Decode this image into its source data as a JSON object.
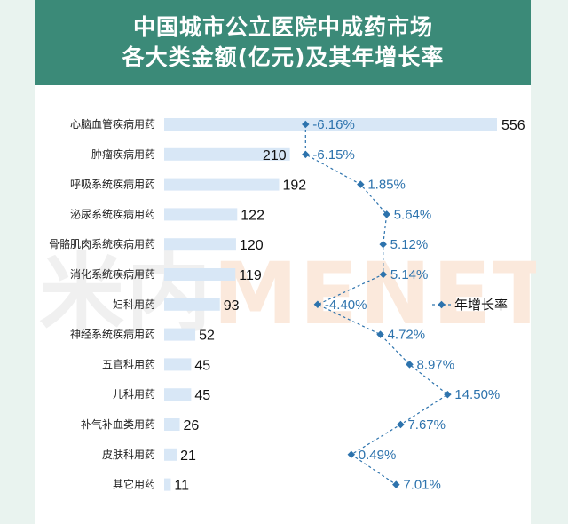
{
  "header": {
    "title_line1": "中国城市公立医院中成药市场",
    "title_line2": "各大类金额(亿元)及其年增长率"
  },
  "watermark": {
    "left": "米内",
    "right": "MENET"
  },
  "colors": {
    "header_bg": "#3b8a78",
    "bar": "#d8e7f6",
    "rate_line": "#2d73ad",
    "rate_text": "#2d73ad"
  },
  "chart_data": {
    "type": "bar",
    "orientation": "horizontal",
    "categories": [
      "心脑血管疾病用药",
      "肿瘤疾病用药",
      "呼吸系统疾病用药",
      "泌尿系统疾病用药",
      "骨骼肌肉系统疾病用药",
      "消化系统疾病用药",
      "妇科用药",
      "神经系统疾病用药",
      "五官科用药",
      "儿科用药",
      "补气补血类用药",
      "皮肤科用药",
      "其它用药"
    ],
    "value_labels": [
      "556",
      "210",
      "192",
      "122",
      "120",
      "119",
      "93",
      "52",
      "45",
      "45",
      "26",
      "21",
      "11"
    ],
    "values": [
      556,
      210,
      192,
      122,
      120,
      119,
      93,
      52,
      45,
      45,
      26,
      21,
      11
    ],
    "series": [
      {
        "name": "年增长率",
        "type": "line",
        "values": [
          -6.16,
          -6.15,
          1.85,
          5.64,
          5.12,
          5.14,
          -4.4,
          4.72,
          8.97,
          14.5,
          7.67,
          0.49,
          7.01
        ],
        "labels": [
          "-6.16%",
          "-6.15%",
          "1.85%",
          "5.64%",
          "5.12%",
          "5.14%",
          "-4.40%",
          "4.72%",
          "8.97%",
          "14.50%",
          "7.67%",
          "0.49%",
          "7.01%"
        ]
      }
    ],
    "legend": {
      "label": "年增长率",
      "position": "right"
    },
    "grid": false
  }
}
